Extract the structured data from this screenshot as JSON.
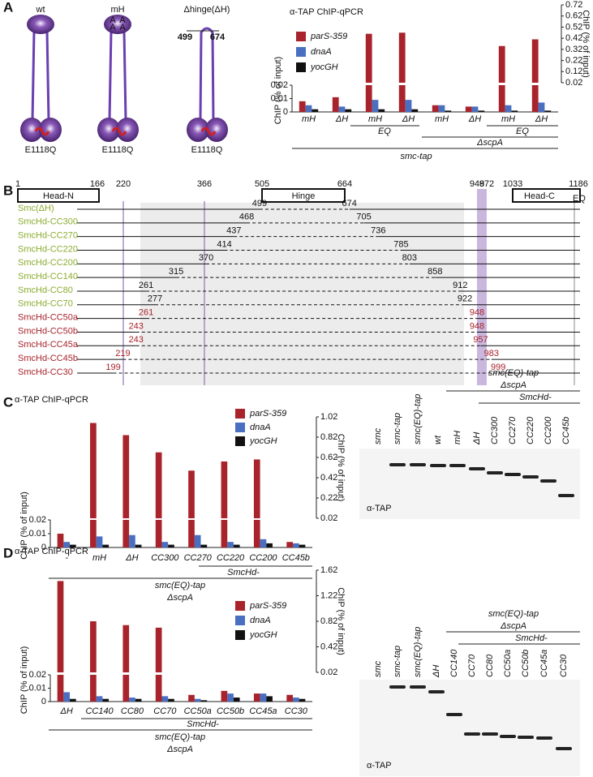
{
  "panel_labels": [
    "A",
    "B",
    "C",
    "D"
  ],
  "smc_models": {
    "names": [
      "wt",
      "mH",
      "Δhinge(ΔH)"
    ],
    "mutation": "E1118Q",
    "hinge_mutation": "A",
    "deletion_ends": [
      499,
      674
    ]
  },
  "chart_data": [
    {
      "type": "bar",
      "title": "α-TAP ChIP-qPCR",
      "y_label": "ChIP (% of input)",
      "y2_label": "ChIP (% of input)",
      "categories": [
        "mH",
        "ΔH",
        "mH",
        "ΔH",
        "mH",
        "ΔH",
        "mH",
        "ΔH"
      ],
      "series": [
        {
          "name": "parS-359",
          "color": "#a8232b",
          "values": [
            0.008,
            0.011,
            0.46,
            0.47,
            0.005,
            0.004,
            0.35,
            0.41
          ]
        },
        {
          "name": "dnaA",
          "color": "#4a6fc1",
          "values": [
            0.005,
            0.004,
            0.009,
            0.009,
            0.005,
            0.004,
            0.005,
            0.007
          ]
        },
        {
          "name": "yocGH",
          "color": "#111111",
          "values": [
            0.002,
            0.002,
            0.002,
            0.002,
            0.001,
            0.001,
            0.001,
            0.001
          ]
        }
      ],
      "ylim": [
        0,
        0.02
      ],
      "yticks": [
        0,
        0.01,
        0.02
      ],
      "y2lim": [
        0.02,
        0.72
      ],
      "y2ticks": [
        0.02,
        0.12,
        0.22,
        0.32,
        0.42,
        0.52,
        0.62,
        0.72
      ],
      "group_labels": [
        "EQ",
        "ΔscpA",
        "EQ",
        "smc-tap"
      ]
    },
    {
      "type": "bar",
      "title": "α-TAP ChIP-qPCR",
      "y_label": "ChIP (% of input)",
      "y2_label": "ChIP (% of input)",
      "categories": [
        "-",
        "mH",
        "ΔH",
        "CC300",
        "CC270",
        "CC220",
        "CC200",
        "CC45b"
      ],
      "series": [
        {
          "name": "parS-359",
          "color": "#a8232b",
          "values": [
            0.01,
            0.96,
            0.84,
            0.67,
            0.49,
            0.58,
            0.6,
            0.004
          ]
        },
        {
          "name": "dnaA",
          "color": "#4a6fc1",
          "values": [
            0.004,
            0.008,
            0.009,
            0.004,
            0.009,
            0.004,
            0.006,
            0.003
          ]
        },
        {
          "name": "yocGH",
          "color": "#111111",
          "values": [
            0.002,
            0.002,
            0.002,
            0.002,
            0.002,
            0.002,
            0.003,
            0.002
          ]
        }
      ],
      "ylim": [
        0,
        0.02
      ],
      "yticks": [
        0,
        0.01,
        0.02
      ],
      "y2lim": [
        0.02,
        1.02
      ],
      "y2ticks": [
        0.02,
        0.22,
        0.42,
        0.62,
        0.82,
        1.02
      ],
      "group_labels": [
        "SmcHd-",
        "smc(EQ)-tap",
        "ΔscpA"
      ]
    },
    {
      "type": "bar",
      "title": "α-TAP ChIP-qPCR",
      "y_label": "ChIP (% of input)",
      "y2_label": "ChIP (% of input)",
      "categories": [
        "ΔH",
        "CC140",
        "CC80",
        "CC70",
        "CC50a",
        "CC50b",
        "CC45a",
        "CC30"
      ],
      "series": [
        {
          "name": "parS-359",
          "color": "#a8232b",
          "values": [
            1.45,
            0.82,
            0.76,
            0.72,
            0.005,
            0.008,
            0.006,
            0.005
          ]
        },
        {
          "name": "dnaA",
          "color": "#4a6fc1",
          "values": [
            0.007,
            0.004,
            0.003,
            0.004,
            0.002,
            0.006,
            0.006,
            0.003
          ]
        },
        {
          "name": "yocGH",
          "color": "#111111",
          "values": [
            0.002,
            0.002,
            0.002,
            0.002,
            0.001,
            0.003,
            0.004,
            0.002
          ]
        }
      ],
      "ylim": [
        0,
        0.02
      ],
      "yticks": [
        0,
        0.01,
        0.02
      ],
      "y2lim": [
        0.02,
        1.62
      ],
      "y2ticks": [
        0.02,
        0.42,
        0.82,
        1.22,
        1.62
      ],
      "group_labels": [
        "SmcHd-",
        "smc(EQ)-tap",
        "ΔscpA"
      ]
    }
  ],
  "constructs": {
    "scale": [
      1,
      166,
      220,
      366,
      505,
      664,
      948,
      972,
      1033,
      1186
    ],
    "domains": [
      "Head-N",
      "Hinge",
      "Head-C"
    ],
    "mutation": "EQ",
    "rows": [
      {
        "name": "Smc(ΔH)",
        "start": 499,
        "end": 674,
        "color": "#8aac2e"
      },
      {
        "name": "SmcHd-CC300",
        "start": 468,
        "end": 705,
        "color": "#8aac2e"
      },
      {
        "name": "SmcHd-CC270",
        "start": 437,
        "end": 736,
        "color": "#8aac2e"
      },
      {
        "name": "SmcHd-CC220",
        "start": 414,
        "end": 785,
        "color": "#8aac2e"
      },
      {
        "name": "SmcHd-CC200",
        "start": 370,
        "end": 803,
        "color": "#8aac2e"
      },
      {
        "name": "SmcHd-CC140",
        "start": 315,
        "end": 858,
        "color": "#8aac2e"
      },
      {
        "name": "SmcHd-CC80",
        "start": 261,
        "end": 912,
        "color": "#8aac2e"
      },
      {
        "name": "SmcHd-CC70",
        "start": 277,
        "end": 922,
        "color": "#8aac2e"
      },
      {
        "name": "SmcHd-CC50a",
        "start": 261,
        "end": 948,
        "color": "#a8232b"
      },
      {
        "name": "SmcHd-CC50b",
        "start": 243,
        "end": 948,
        "color": "#a8232b"
      },
      {
        "name": "SmcHd-CC45a",
        "start": 243,
        "end": 957,
        "color": "#a8232b"
      },
      {
        "name": "SmcHd-CC45b",
        "start": 219,
        "end": 983,
        "color": "#a8232b"
      },
      {
        "name": "SmcHd-CC30",
        "start": 199,
        "end": 999,
        "color": "#a8232b"
      }
    ]
  },
  "blots": [
    {
      "group_labels": [
        "smc(EQ)-tap",
        "ΔscpA",
        "SmcHd-"
      ],
      "lanes": [
        "smc",
        "smc-tap",
        "smc(EQ)-tap",
        "wt",
        "mH",
        "ΔH",
        "CC300",
        "CC270",
        "CC220",
        "CC200",
        "CC45b"
      ],
      "antibody": "α-TAP"
    },
    {
      "group_labels": [
        "smc(EQ)-tap",
        "ΔscpA",
        "SmcHd-"
      ],
      "lanes": [
        "smc",
        "smc-tap",
        "smc(EQ)-tap",
        "ΔH",
        "CC140",
        "CC70",
        "CC80",
        "CC50a",
        "CC50b",
        "CC45a",
        "CC30"
      ],
      "antibody": "α-TAP"
    }
  ]
}
